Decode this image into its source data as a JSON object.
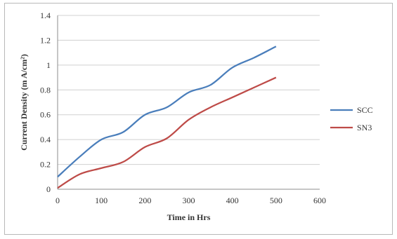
{
  "chart_data": {
    "type": "line",
    "xlabel": "Time in Hrs",
    "ylabel": "Current Density (m A/cm²)",
    "xlim": [
      0,
      600
    ],
    "ylim": [
      0,
      1.4
    ],
    "xticks": [
      "0",
      "100",
      "200",
      "300",
      "400",
      "500",
      "600"
    ],
    "yticks": [
      "0",
      "0.2",
      "0.4",
      "0.6",
      "0.8",
      "1",
      "1.2",
      "1.4"
    ],
    "grid": true,
    "legend_position": "right",
    "series": [
      {
        "name": "SCC",
        "color": "#4a7ebb",
        "x": [
          0,
          50,
          100,
          150,
          200,
          250,
          300,
          350,
          400,
          450,
          500
        ],
        "y": [
          0.1,
          0.26,
          0.4,
          0.46,
          0.6,
          0.66,
          0.78,
          0.84,
          0.98,
          1.06,
          1.15
        ]
      },
      {
        "name": "SN3",
        "color": "#be4b48",
        "x": [
          0,
          50,
          100,
          150,
          200,
          250,
          300,
          350,
          400,
          450,
          500
        ],
        "y": [
          0.01,
          0.12,
          0.17,
          0.22,
          0.34,
          0.41,
          0.56,
          0.66,
          0.74,
          0.82,
          0.9
        ]
      }
    ]
  }
}
